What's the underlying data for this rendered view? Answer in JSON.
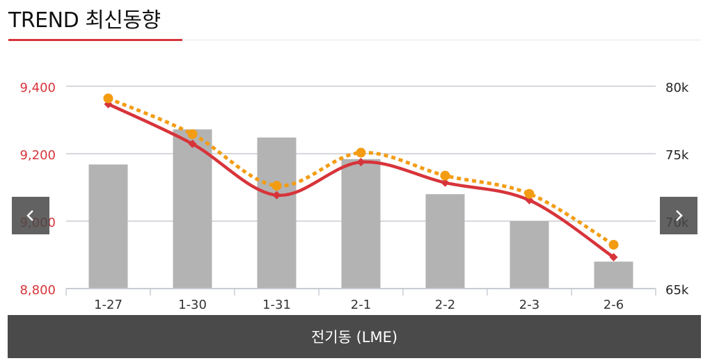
{
  "header": {
    "title": "TREND 최신동향"
  },
  "footer": {
    "label": "전기동 (LME)"
  },
  "nav": {
    "prev_icon": "chevron-left-icon",
    "next_icon": "chevron-right-icon"
  },
  "colors": {
    "price_line": "#d7343a",
    "dotted_line": "#f39c12",
    "bars": "#b3b3b3",
    "left_axis_text": "#d7343a",
    "grid": "#c8ccd2"
  },
  "chart_data": {
    "type": "bar",
    "categories": [
      "1-27",
      "1-30",
      "1-31",
      "2-1",
      "2-2",
      "2-3",
      "2-6"
    ],
    "series": [
      {
        "type": "bar",
        "axis": "right",
        "values": [
          74.2,
          76.8,
          76.2,
          74.6,
          72.0,
          70.0,
          67.0
        ]
      },
      {
        "type": "line",
        "axis": "left",
        "style": "solid",
        "marker": "diamond",
        "values": [
          9347,
          9229,
          9077,
          9175,
          9114,
          9062,
          8893
        ]
      },
      {
        "type": "line",
        "axis": "left",
        "style": "dotted",
        "marker": "circle",
        "values": [
          9364,
          9258,
          9105,
          9203,
          9135,
          9081,
          8930
        ]
      }
    ],
    "y_left": {
      "min": 8800,
      "max": 9400,
      "ticks": [
        "8,800",
        "9,000",
        "9,200",
        "9,400"
      ]
    },
    "y_right": {
      "min": 65,
      "max": 80,
      "ticks": [
        "65k",
        "70k",
        "75k",
        "80k"
      ]
    },
    "grid": true,
    "legend": "none"
  }
}
